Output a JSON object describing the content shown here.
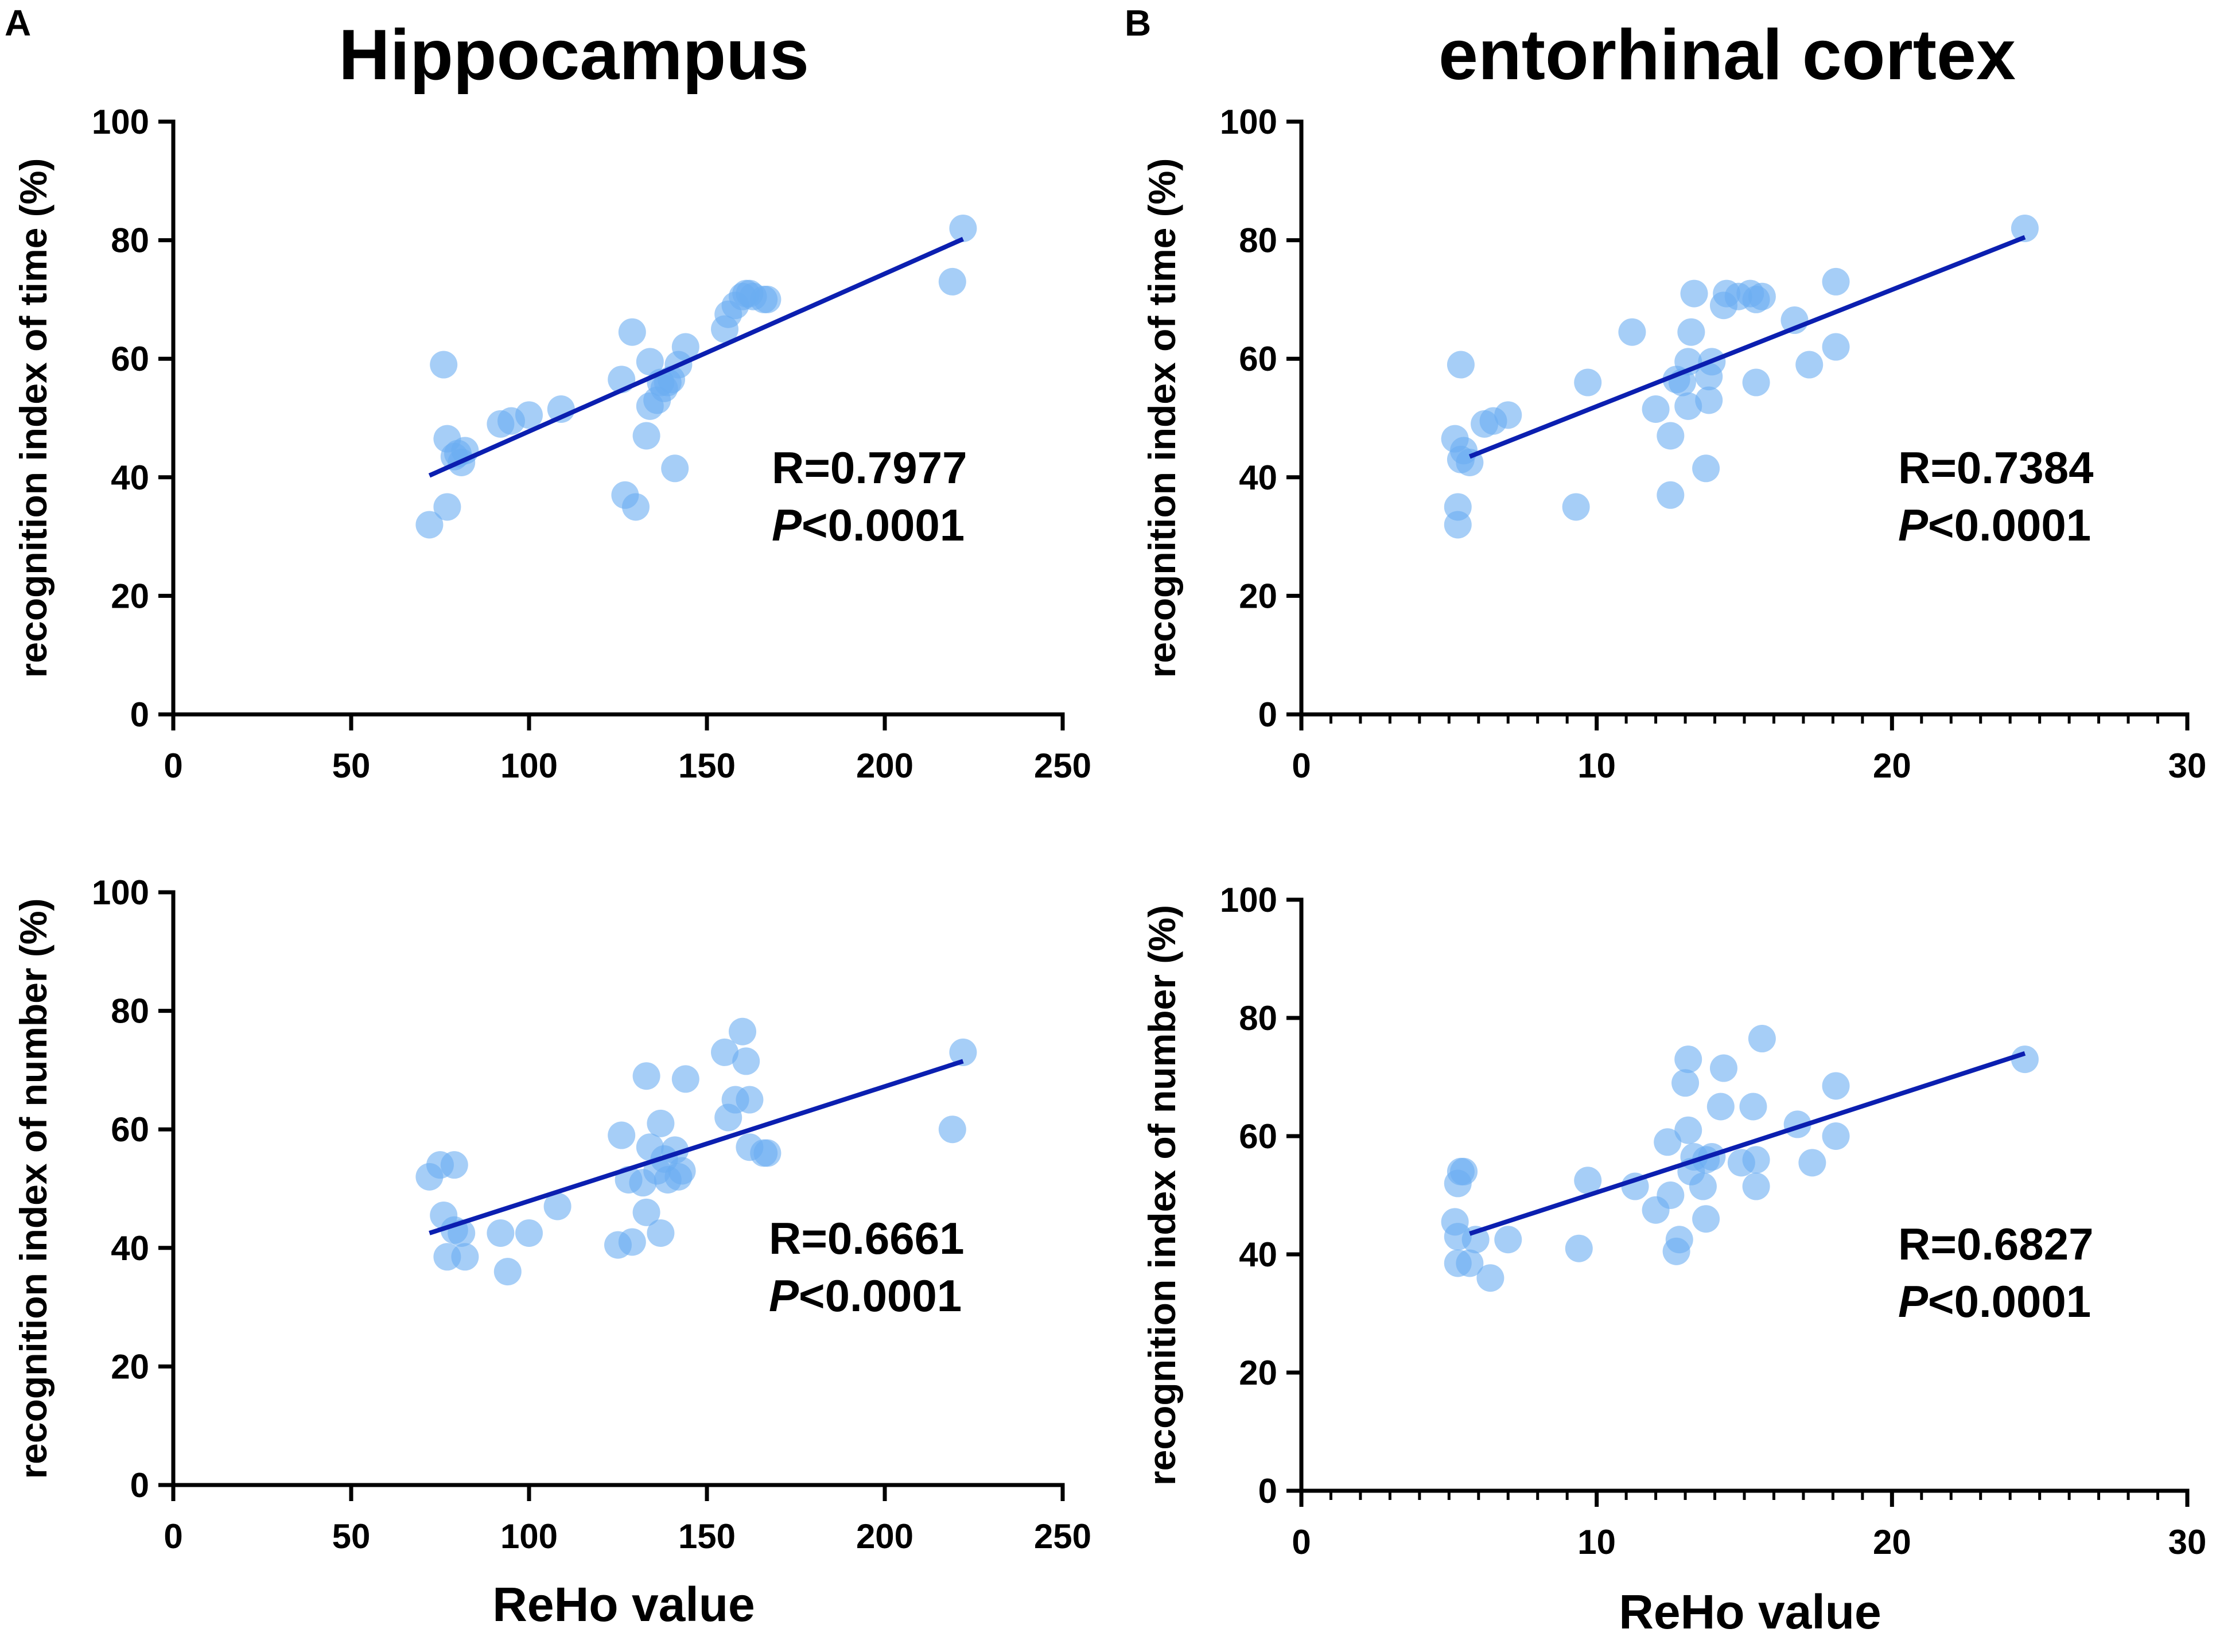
{
  "panel_labels": {
    "A": "A",
    "B": "B"
  },
  "column_titles": {
    "left": "Hippocampus",
    "right": "entorhinal cortex"
  },
  "x_axis_label": "ReHo value",
  "colors": {
    "points": "#6aaef1",
    "fit_line": "#0b1fb0",
    "axes": "#000000"
  },
  "chart_data": [
    {
      "id": "hippo_time",
      "type": "scatter",
      "title": "Hippocampus",
      "xlabel": "",
      "ylabel": "recognition index of time (%)",
      "xlim": [
        0,
        250
      ],
      "ylim": [
        0,
        100
      ],
      "xticks": [
        0,
        50,
        100,
        150,
        200,
        250
      ],
      "yticks": [
        0,
        20,
        40,
        60,
        80,
        100
      ],
      "minor_x": false,
      "stat_r": "R=0.7977",
      "stat_p_italic": "P",
      "stat_p_rest": "<0.0001",
      "fit": {
        "x": [
          72,
          222
        ],
        "y": [
          40.3,
          80.2
        ]
      },
      "points": [
        [
          72,
          32
        ],
        [
          76,
          59
        ],
        [
          77,
          46.5
        ],
        [
          77,
          35
        ],
        [
          79,
          43.5
        ],
        [
          80,
          44
        ],
        [
          81,
          42.5
        ],
        [
          82,
          44.5
        ],
        [
          92,
          49
        ],
        [
          95,
          49.5
        ],
        [
          100,
          50.5
        ],
        [
          109,
          51.5
        ],
        [
          126,
          56.5
        ],
        [
          127,
          37
        ],
        [
          129,
          64.5
        ],
        [
          130,
          35
        ],
        [
          133,
          47
        ],
        [
          134,
          59.5
        ],
        [
          134,
          52
        ],
        [
          136,
          53
        ],
        [
          137,
          56
        ],
        [
          138,
          55
        ],
        [
          139,
          56
        ],
        [
          140,
          56.5
        ],
        [
          141,
          41.5
        ],
        [
          142,
          59
        ],
        [
          144,
          62
        ],
        [
          155,
          65
        ],
        [
          156,
          67.5
        ],
        [
          158,
          69
        ],
        [
          160,
          70.5
        ],
        [
          161,
          71
        ],
        [
          162,
          71
        ],
        [
          163,
          70.5
        ],
        [
          166,
          70
        ],
        [
          167,
          70
        ],
        [
          219,
          73
        ],
        [
          222,
          82
        ]
      ]
    },
    {
      "id": "ento_time",
      "type": "scatter",
      "title": "entorhinal cortex",
      "xlabel": "",
      "ylabel": "recognition index of time (%)",
      "xlim": [
        0,
        30
      ],
      "ylim": [
        0,
        100
      ],
      "xticks": [
        0,
        10,
        20,
        30
      ],
      "yticks": [
        0,
        20,
        40,
        60,
        80,
        100
      ],
      "minor_x": true,
      "stat_r": "R=0.7384",
      "stat_p_italic": "P",
      "stat_p_rest": "<0.0001",
      "fit": {
        "x": [
          5.7,
          24.5
        ],
        "y": [
          43.5,
          80.5
        ]
      },
      "points": [
        [
          5.2,
          46.5
        ],
        [
          5.3,
          35
        ],
        [
          5.3,
          32
        ],
        [
          5.4,
          59
        ],
        [
          5.4,
          43
        ],
        [
          5.5,
          44.5
        ],
        [
          5.7,
          42.5
        ],
        [
          6.2,
          49
        ],
        [
          6.5,
          49.5
        ],
        [
          7,
          50.5
        ],
        [
          9.3,
          35
        ],
        [
          9.7,
          56
        ],
        [
          11.2,
          64.5
        ],
        [
          12,
          51.5
        ],
        [
          12.5,
          47
        ],
        [
          12.5,
          37
        ],
        [
          12.7,
          56.5
        ],
        [
          12.9,
          56
        ],
        [
          13.1,
          52
        ],
        [
          13.1,
          59.5
        ],
        [
          13.2,
          64.5
        ],
        [
          13.3,
          71
        ],
        [
          13.7,
          41.5
        ],
        [
          13.8,
          53
        ],
        [
          13.8,
          57
        ],
        [
          13.9,
          59.5
        ],
        [
          14.3,
          69
        ],
        [
          14.4,
          71
        ],
        [
          14.8,
          70.5
        ],
        [
          15.2,
          71
        ],
        [
          15.4,
          70
        ],
        [
          15.4,
          56
        ],
        [
          15.6,
          70.5
        ],
        [
          16.7,
          66.5
        ],
        [
          17.2,
          59
        ],
        [
          18.1,
          73
        ],
        [
          18.1,
          62
        ],
        [
          24.5,
          82
        ]
      ]
    },
    {
      "id": "hippo_number",
      "type": "scatter",
      "title": "",
      "xlabel": "ReHo value",
      "ylabel": "recognition index of number (%)",
      "xlim": [
        0,
        250
      ],
      "ylim": [
        0,
        100
      ],
      "xticks": [
        0,
        50,
        100,
        150,
        200,
        250
      ],
      "yticks": [
        0,
        20,
        40,
        60,
        80,
        100
      ],
      "minor_x": false,
      "stat_r": "R=0.6661",
      "stat_p_italic": "P",
      "stat_p_rest": "<0.0001",
      "fit": {
        "x": [
          72,
          222
        ],
        "y": [
          42.5,
          71.5
        ]
      },
      "points": [
        [
          72,
          52
        ],
        [
          75,
          54
        ],
        [
          76,
          45.5
        ],
        [
          77,
          38.5
        ],
        [
          79,
          43
        ],
        [
          79,
          54
        ],
        [
          81,
          42.5
        ],
        [
          82,
          38.5
        ],
        [
          92,
          42.5
        ],
        [
          94,
          36
        ],
        [
          100,
          42.5
        ],
        [
          108,
          47
        ],
        [
          125,
          40.5
        ],
        [
          126,
          59
        ],
        [
          128,
          51.5
        ],
        [
          129,
          41
        ],
        [
          132,
          51
        ],
        [
          133,
          46
        ],
        [
          133,
          69
        ],
        [
          134,
          57
        ],
        [
          136,
          53
        ],
        [
          137,
          42.5
        ],
        [
          137,
          61
        ],
        [
          138,
          55
        ],
        [
          139,
          51.5
        ],
        [
          141,
          56.5
        ],
        [
          142,
          52
        ],
        [
          143,
          53
        ],
        [
          144,
          68.5
        ],
        [
          155,
          73
        ],
        [
          156,
          62
        ],
        [
          158,
          65
        ],
        [
          160,
          76.5
        ],
        [
          161,
          71.5
        ],
        [
          162,
          65
        ],
        [
          162,
          57
        ],
        [
          166,
          56
        ],
        [
          167,
          56
        ],
        [
          219,
          60
        ],
        [
          222,
          73
        ]
      ]
    },
    {
      "id": "ento_number",
      "type": "scatter",
      "title": "",
      "xlabel": "ReHo value",
      "ylabel": "recognition index of number (%)",
      "xlim": [
        0,
        30
      ],
      "ylim": [
        0,
        100
      ],
      "xticks": [
        0,
        10,
        20,
        30
      ],
      "yticks": [
        0,
        20,
        40,
        60,
        80,
        100
      ],
      "minor_x": true,
      "stat_r": "R=0.6827",
      "stat_p_italic": "P",
      "stat_p_rest": "<0.0001",
      "fit": {
        "x": [
          5.7,
          24.5
        ],
        "y": [
          43.5,
          74
        ]
      },
      "points": [
        [
          5.2,
          45.5
        ],
        [
          5.3,
          52
        ],
        [
          5.3,
          38.5
        ],
        [
          5.3,
          43
        ],
        [
          5.4,
          54
        ],
        [
          5.5,
          54
        ],
        [
          5.7,
          38.5
        ],
        [
          5.9,
          42.5
        ],
        [
          6.4,
          36
        ],
        [
          7,
          42.5
        ],
        [
          9.4,
          41
        ],
        [
          9.7,
          52.5
        ],
        [
          11.3,
          51.5
        ],
        [
          12,
          47.5
        ],
        [
          12.4,
          59
        ],
        [
          12.5,
          50
        ],
        [
          12.7,
          40.5
        ],
        [
          12.8,
          42.5
        ],
        [
          13,
          69
        ],
        [
          13.1,
          73
        ],
        [
          13.1,
          61
        ],
        [
          13.2,
          54
        ],
        [
          13.3,
          56.5
        ],
        [
          13.6,
          51.5
        ],
        [
          13.7,
          46
        ],
        [
          13.7,
          56
        ],
        [
          13.9,
          56.5
        ],
        [
          14.2,
          65
        ],
        [
          14.3,
          71.5
        ],
        [
          14.9,
          55.5
        ],
        [
          15.3,
          65
        ],
        [
          15.4,
          51.5
        ],
        [
          15.4,
          56
        ],
        [
          15.6,
          76.5
        ],
        [
          16.8,
          62
        ],
        [
          17.3,
          55.5
        ],
        [
          18.1,
          68.5
        ],
        [
          18.1,
          60
        ],
        [
          24.5,
          73
        ]
      ]
    }
  ]
}
